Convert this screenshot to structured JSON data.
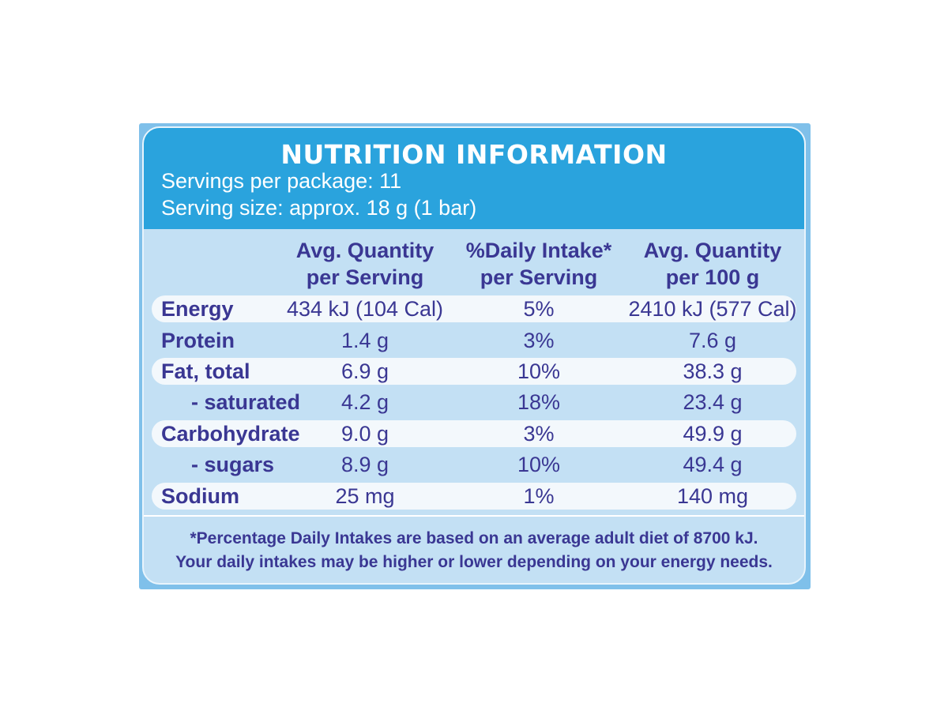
{
  "panel": {
    "title": "NUTRITION INFORMATION",
    "servings_per_package": "Servings per package: 11",
    "serving_size": "Serving size: approx. 18 g (1 bar)"
  },
  "columns": [
    {
      "line1": "Avg. Quantity",
      "line2": "per Serving"
    },
    {
      "line1": "%Daily Intake*",
      "line2": "per Serving"
    },
    {
      "line1": "Avg. Quantity",
      "line2": "per 100 g"
    }
  ],
  "rows": [
    {
      "nutrient": "Energy",
      "per_serving": "434 kJ (104 Cal)",
      "daily_intake": "5%",
      "per_100g": "2410 kJ (577 Cal)"
    },
    {
      "nutrient": "Protein",
      "per_serving": "1.4 g",
      "daily_intake": "3%",
      "per_100g": "7.6 g"
    },
    {
      "nutrient": "Fat, total",
      "per_serving": "6.9 g",
      "daily_intake": "10%",
      "per_100g": "38.3 g"
    },
    {
      "nutrient": "- saturated",
      "per_serving": "4.2 g",
      "daily_intake": "18%",
      "per_100g": "23.4 g"
    },
    {
      "nutrient": "Carbohydrate",
      "per_serving": "9.0 g",
      "daily_intake": "3%",
      "per_100g": "49.9 g"
    },
    {
      "nutrient": "- sugars",
      "per_serving": "8.9 g",
      "daily_intake": "10%",
      "per_100g": "49.4 g"
    },
    {
      "nutrient": "Sodium",
      "per_serving": "25 mg",
      "daily_intake": "1%",
      "per_100g": "140 mg"
    }
  ],
  "footnote": {
    "line1": "*Percentage Daily Intakes are based on an average adult diet of 8700 kJ.",
    "line2": "Your daily intakes may be higher or lower depending on your energy needs."
  },
  "colors": {
    "header_blue": "#2aa3dd",
    "panel_light_blue": "#c3e0f4",
    "text_navy": "#3a3793",
    "row_highlight": "#f3f8fc"
  }
}
